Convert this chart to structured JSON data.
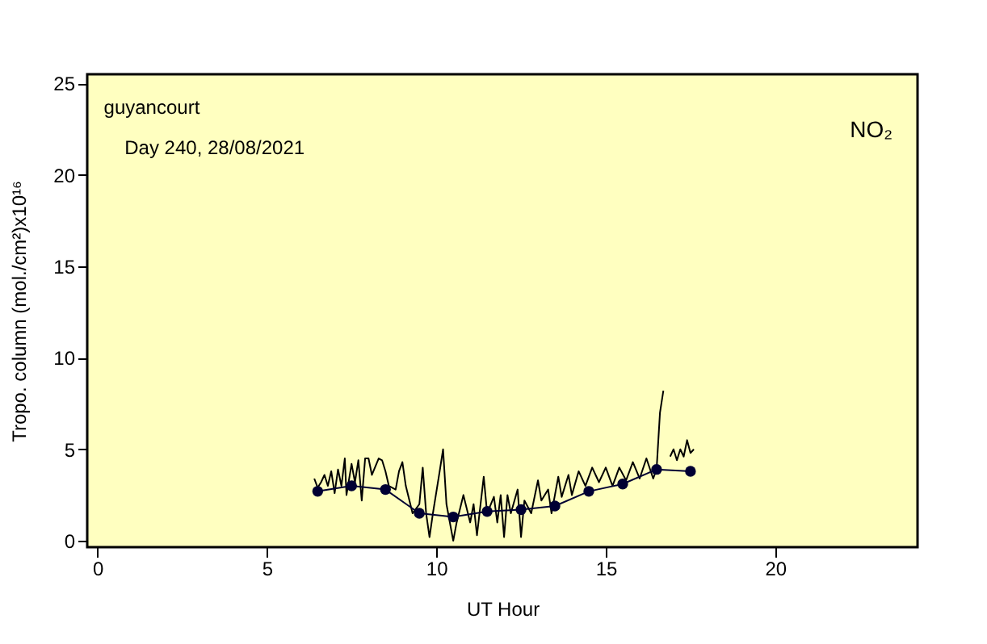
{
  "chart_data": {
    "type": "line",
    "xlabel": "UT Hour",
    "ylabel": "Tropo. column (mol./cm²)x10¹⁶",
    "annotations": [
      "guyancourt",
      "Day 240, 28/08/2021",
      "NO₂"
    ],
    "xlim": [
      -0.3,
      24.2
    ],
    "ylim": [
      -0.35,
      25.5
    ],
    "xticks": [
      0,
      5,
      10,
      15,
      20
    ],
    "yticks": [
      0,
      5,
      10,
      15,
      20,
      25
    ],
    "grid": false,
    "series": [
      {
        "color": "#000000",
        "marker": "none",
        "line_style": "solid",
        "x": [
          6.4,
          6.5,
          6.6,
          6.7,
          6.8,
          6.9,
          7.0,
          7.1,
          7.2,
          7.3,
          7.35,
          7.5,
          7.6,
          7.7,
          7.8,
          7.9,
          8.0,
          8.1,
          8.3,
          8.4,
          8.5,
          8.6,
          8.8,
          8.9,
          9.0,
          9.1,
          9.3,
          9.5,
          9.6,
          9.7,
          9.8,
          9.9,
          10.1,
          10.2,
          10.3,
          10.5,
          10.6,
          10.8,
          11.0,
          11.1,
          11.2,
          11.4,
          11.5,
          11.7,
          11.8,
          11.9,
          12.0,
          12.1,
          12.2,
          12.4,
          12.5,
          12.6,
          12.8,
          13.0,
          13.1,
          13.3,
          13.4,
          13.6,
          13.7,
          13.9,
          14.0,
          14.2,
          14.4,
          14.6,
          14.8,
          15.0,
          15.2,
          15.4,
          15.6,
          15.8,
          16.0,
          16.2,
          16.4,
          16.5,
          16.6,
          16.7,
          16.8,
          16.9,
          17.0,
          17.1,
          17.2,
          17.3,
          17.4,
          17.5,
          17.6
        ],
        "values": [
          3.4,
          2.9,
          3.2,
          3.6,
          3.0,
          3.8,
          2.6,
          3.9,
          3.0,
          4.5,
          2.5,
          4.2,
          3.2,
          4.4,
          2.2,
          4.5,
          4.5,
          3.6,
          4.5,
          4.4,
          3.8,
          3.0,
          2.8,
          3.8,
          4.3,
          3.0,
          1.5,
          2.0,
          4.0,
          1.5,
          0.2,
          1.5,
          3.8,
          5.0,
          2.0,
          0.0,
          1.0,
          2.5,
          1.0,
          2.0,
          0.3,
          3.5,
          1.5,
          2.4,
          1.0,
          2.5,
          0.2,
          2.5,
          1.5,
          2.8,
          0.2,
          2.2,
          1.5,
          3.3,
          2.2,
          2.8,
          1.5,
          3.5,
          2.4,
          3.6,
          2.5,
          3.8,
          3.0,
          4.0,
          3.2,
          4.0,
          3.0,
          4.0,
          3.3,
          4.3,
          3.4,
          4.5,
          3.4,
          3.9,
          7.0,
          8.2,
          null,
          4.6,
          5.0,
          4.4,
          5.0,
          4.6,
          5.5,
          4.8,
          5.0
        ]
      },
      {
        "color": "#000033",
        "marker": "circle",
        "line_style": "solid",
        "x": [
          6.5,
          7.5,
          8.5,
          9.5,
          10.5,
          11.5,
          12.5,
          13.5,
          14.5,
          15.5,
          16.5,
          17.5
        ],
        "values": [
          2.7,
          3.0,
          2.8,
          1.5,
          1.3,
          1.6,
          1.7,
          1.9,
          2.7,
          3.1,
          3.9,
          3.8
        ]
      }
    ]
  }
}
